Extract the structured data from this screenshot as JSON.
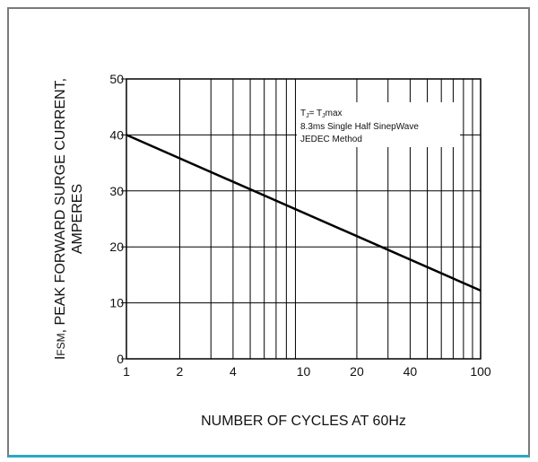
{
  "colors": {
    "frame": "#7a7a7a",
    "accent": "#2aa8c4",
    "grid": "#000000",
    "line": "#000000"
  },
  "chart_data": {
    "type": "line",
    "xscale": "log",
    "xlabel": "NUMBER OF CYCLES AT 60Hz",
    "ylabel_line1": "IFSM, PEAK FORWARD SURGE CURRENT,",
    "ylabel_line2": "AMPERES",
    "xlim": [
      1,
      100
    ],
    "ylim": [
      0,
      50
    ],
    "grid": true,
    "x_ticks": [
      1,
      2,
      4,
      10,
      20,
      40,
      100
    ],
    "x_tick_labels": [
      "1",
      "2",
      "4",
      "10",
      "20",
      "40",
      "100"
    ],
    "y_ticks": [
      0,
      10,
      20,
      30,
      40,
      50
    ],
    "y_tick_labels": [
      "0",
      "10",
      "20",
      "30",
      "40",
      "50"
    ],
    "annotation": [
      "TJ= TJmax",
      "8.3ms Single Half SinepWave",
      "JEDEC Method"
    ],
    "series": [
      {
        "x": [
          1,
          100
        ],
        "y": [
          40,
          12.2
        ]
      }
    ]
  }
}
